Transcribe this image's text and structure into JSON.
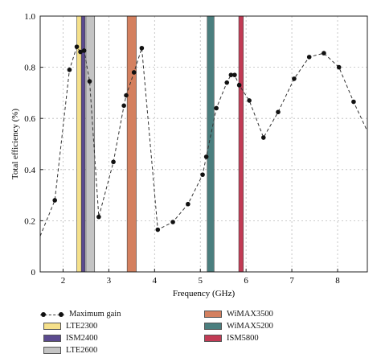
{
  "chart_data": {
    "type": "line",
    "xlabel": "Frequency (GHz)",
    "ylabel": "Total efficiency (%)",
    "xlim": [
      1.5,
      8.65
    ],
    "ylim": [
      0,
      1.0
    ],
    "grid": true,
    "x_ticks": [
      "2",
      "3",
      "4",
      "5",
      "6",
      "7",
      "8"
    ],
    "x_tick_values": [
      2,
      3,
      4,
      5,
      6,
      7,
      8
    ],
    "y_ticks": [
      "0",
      "0.2",
      "0.4",
      "0.6",
      "0.8",
      "1.0"
    ],
    "y_tick_values": [
      0,
      0.2,
      0.4,
      0.6,
      0.8,
      1.0
    ],
    "series": [
      {
        "name": "Maximum gain",
        "style": "dashed-line-with-dots",
        "color": "#111111",
        "line_start": {
          "x": 1.5,
          "y": 0.14
        },
        "line_end": {
          "x": 8.65,
          "y": 0.55
        },
        "x": [
          1.82,
          2.14,
          2.3,
          2.38,
          2.46,
          2.58,
          2.78,
          3.1,
          3.33,
          3.38,
          3.55,
          3.72,
          4.07,
          4.4,
          4.73,
          5.05,
          5.13,
          5.35,
          5.58,
          5.67,
          5.75,
          5.85,
          6.07,
          6.38,
          6.7,
          7.05,
          7.38,
          7.7,
          8.03,
          8.35
        ],
        "y": [
          0.28,
          0.79,
          0.88,
          0.86,
          0.865,
          0.745,
          0.215,
          0.43,
          0.65,
          0.69,
          0.78,
          0.875,
          0.165,
          0.195,
          0.265,
          0.38,
          0.45,
          0.64,
          0.74,
          0.77,
          0.77,
          0.73,
          0.67,
          0.525,
          0.625,
          0.755,
          0.84,
          0.855,
          0.8,
          0.665
        ]
      }
    ],
    "bands": [
      {
        "name": "LTE2300",
        "from": 2.3,
        "to": 2.4,
        "color": "#f5e08a"
      },
      {
        "name": "ISM2400",
        "from": 2.4,
        "to": 2.48,
        "color": "#5b4a8f"
      },
      {
        "name": "LTE2600",
        "from": 2.5,
        "to": 2.69,
        "color": "#c4c4c4"
      },
      {
        "name": "WiMAX3500",
        "from": 3.4,
        "to": 3.6,
        "color": "#d4805f"
      },
      {
        "name": "WiMAX5200",
        "from": 5.15,
        "to": 5.3,
        "color": "#4b7f7f"
      },
      {
        "name": "ISM5800",
        "from": 5.84,
        "to": 5.94,
        "color": "#c23b55"
      }
    ]
  },
  "legend": {
    "line_label": "Maximum gain",
    "left_bands": [
      {
        "label": "LTE2300",
        "color": "#f5e08a"
      },
      {
        "label": "ISM2400",
        "color": "#5b4a8f"
      },
      {
        "label": "LTE2600",
        "color": "#c4c4c4"
      }
    ],
    "right_bands": [
      {
        "label": "WiMAX3500",
        "color": "#d4805f"
      },
      {
        "label": "WiMAX5200",
        "color": "#4b7f7f"
      },
      {
        "label": "ISM5800",
        "color": "#c23b55"
      }
    ]
  }
}
